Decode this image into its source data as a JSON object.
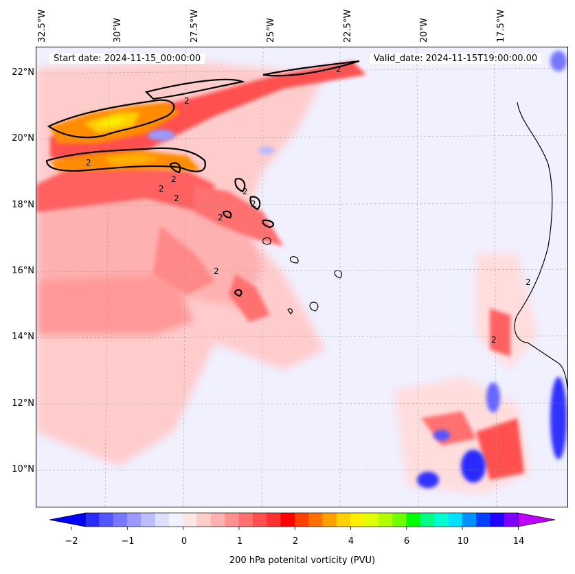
{
  "map": {
    "start_label": "Start date: 2024-11-15_00:00:00",
    "valid_label": "Valid_date: 2024-11-15T19:00:00.00",
    "longitude_labels": [
      "32.5°W",
      "30°W",
      "27.5°W",
      "25°W",
      "22.5°W",
      "20°W",
      "17.5°W"
    ],
    "latitude_labels": [
      "22°N",
      "20°N",
      "18°N",
      "16°N",
      "14°N",
      "12°N",
      "10°N"
    ],
    "contour_label": "2",
    "colors": {
      "background": "#f0f0ff",
      "pv_low": "#0000ff",
      "pv_high": "#ff0000",
      "coast": "#000000"
    }
  },
  "colorbar": {
    "label": "200 hPa potenital vorticity (PVU)",
    "tick_labels": [
      "−2",
      "−1",
      "0",
      "1",
      "2",
      "4",
      "6",
      "10",
      "14"
    ],
    "colors": [
      "#0000ff",
      "#2a2aff",
      "#5555ff",
      "#7777ff",
      "#9a9aff",
      "#bcbcff",
      "#dedeff",
      "#f0f0ff",
      "#ffe6e6",
      "#ffcccc",
      "#ffb0b0",
      "#ff9090",
      "#ff7070",
      "#ff5050",
      "#ff3030",
      "#ff0000",
      "#ff4000",
      "#ff7000",
      "#ffa000",
      "#ffd000",
      "#fff000",
      "#e0ff00",
      "#b0ff00",
      "#70ff00",
      "#00ff00",
      "#00ff80",
      "#00ffd0",
      "#00e0ff",
      "#0090ff",
      "#0040ff",
      "#2000ff",
      "#8000ff",
      "#c000ff"
    ]
  }
}
